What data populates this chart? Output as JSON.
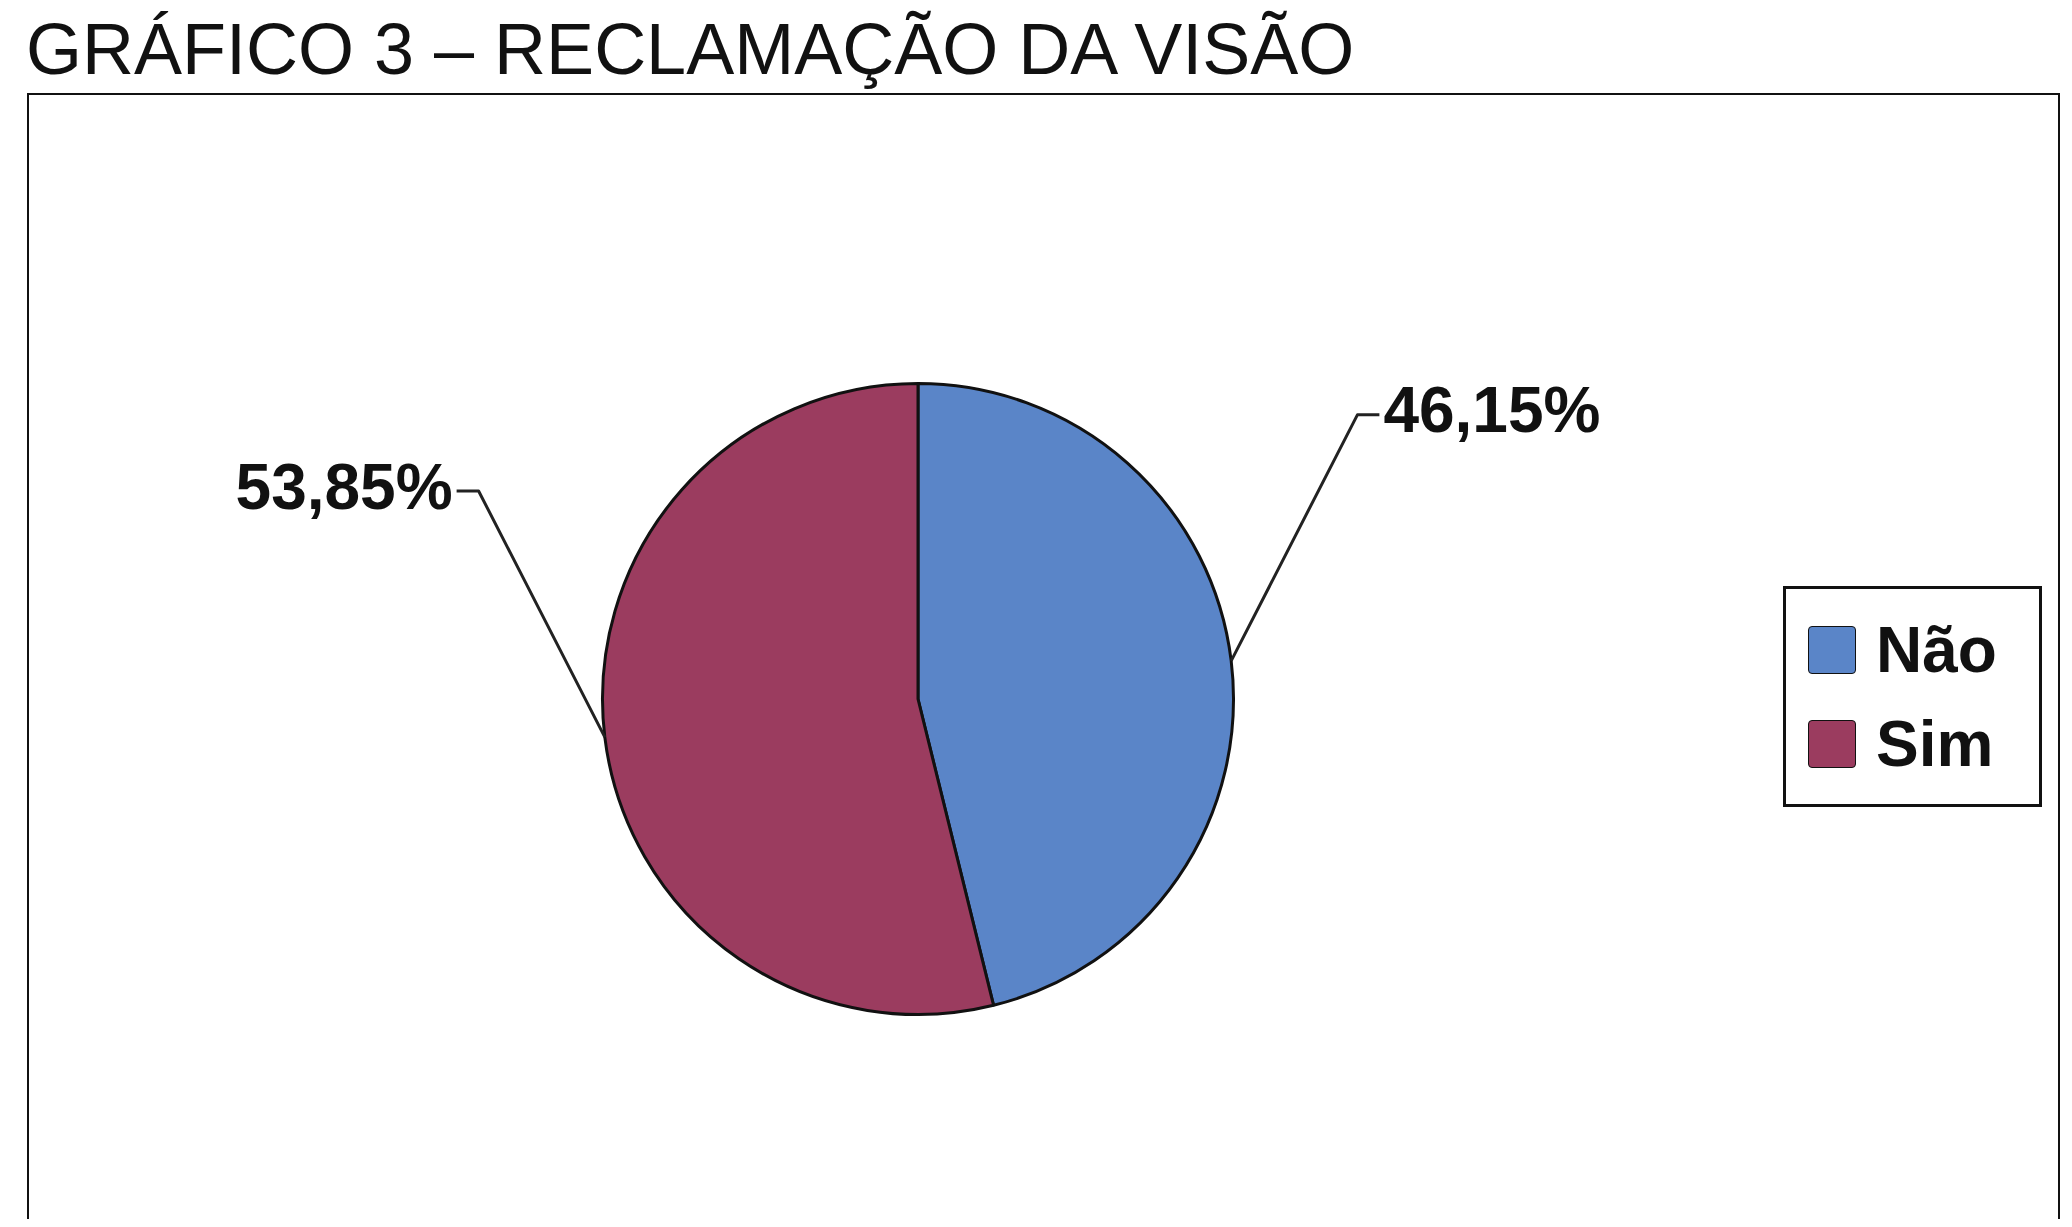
{
  "chart_data": {
    "type": "pie",
    "title": "GRÁFICO 3 – RECLAMAÇÃO DA VISÃO",
    "categories": [
      "Não",
      "Sim"
    ],
    "values": [
      46.15,
      53.85
    ],
    "colors": [
      "#5a85c8",
      "#9b3c5f"
    ],
    "value_labels": [
      "46,15%",
      "53,85%"
    ],
    "legend": "right"
  }
}
